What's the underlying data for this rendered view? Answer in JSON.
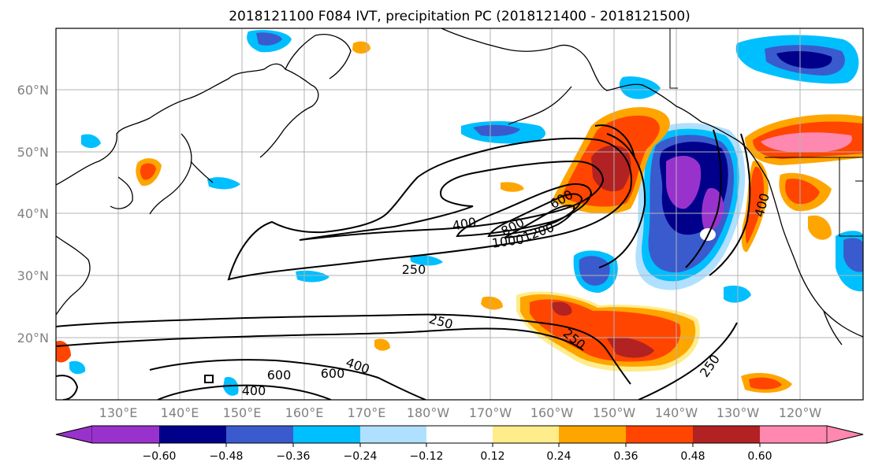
{
  "figure": {
    "title": "2018121100 F084 IVT, precipitation PC (2018121400 - 2018121500)"
  },
  "map": {
    "lon_ticks": [
      "130°E",
      "140°E",
      "150°E",
      "160°E",
      "170°E",
      "180°W",
      "170°W",
      "160°W",
      "150°W",
      "140°W",
      "130°W",
      "120°W"
    ],
    "lat_ticks": [
      "60°N",
      "50°N",
      "40°N",
      "30°N",
      "20°N"
    ],
    "contour_labels": [
      "400",
      "600",
      "800",
      "1000",
      "1200",
      "250",
      "250",
      "250",
      "400",
      "600",
      "400",
      "250",
      "400",
      "600"
    ]
  },
  "colorbar": {
    "levels": [
      "−0.60",
      "−0.48",
      "−0.36",
      "−0.24",
      "−0.12",
      "0.12",
      "0.24",
      "0.36",
      "0.48",
      "0.60"
    ],
    "colors": [
      "#9932cc",
      "#00008b",
      "#3a5bcd",
      "#00bfff",
      "#b0e0ff",
      "#ffffff",
      "#ffec8b",
      "#ffa500",
      "#ff4500",
      "#b22222",
      "#ff88b0"
    ]
  }
}
